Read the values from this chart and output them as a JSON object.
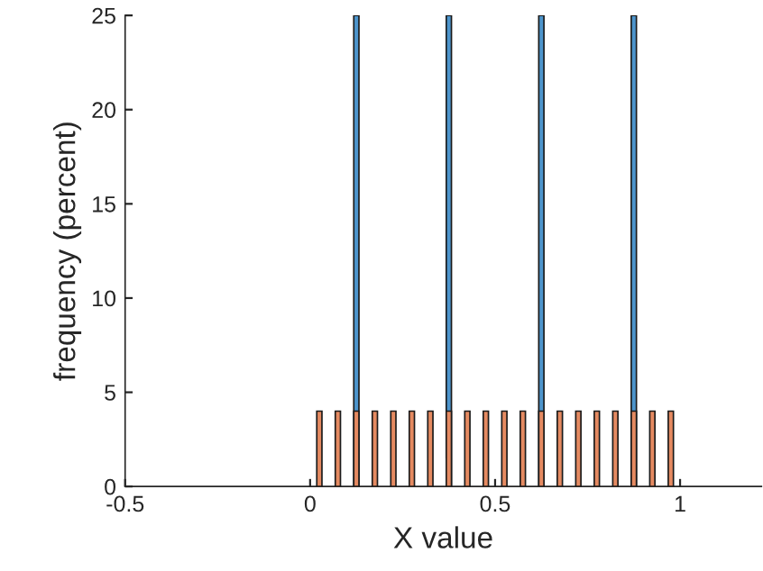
{
  "chart_data": {
    "type": "bar",
    "xlabel": "X value",
    "ylabel": "frequency (percent)",
    "xlim": [
      -0.5,
      1.22
    ],
    "xticks": [
      -0.5,
      0,
      0.5,
      1
    ],
    "ylim": [
      0,
      25
    ],
    "yticks": [
      0,
      5,
      10,
      15,
      20,
      25
    ],
    "grid": false,
    "series": [
      {
        "color": "#4d95cc",
        "x": [
          0.125,
          0.375,
          0.625,
          0.875
        ],
        "values": [
          25,
          25,
          25,
          25
        ]
      },
      {
        "color": "#e58a61",
        "x": [
          0.025,
          0.075,
          0.125,
          0.175,
          0.225,
          0.275,
          0.325,
          0.375,
          0.425,
          0.475,
          0.525,
          0.575,
          0.625,
          0.675,
          0.725,
          0.775,
          0.825,
          0.875,
          0.925,
          0.975
        ],
        "values": [
          4,
          4,
          4,
          4,
          4,
          4,
          4,
          4,
          4,
          4,
          4,
          4,
          4,
          4,
          4,
          4,
          4,
          4,
          4,
          4
        ]
      }
    ]
  }
}
